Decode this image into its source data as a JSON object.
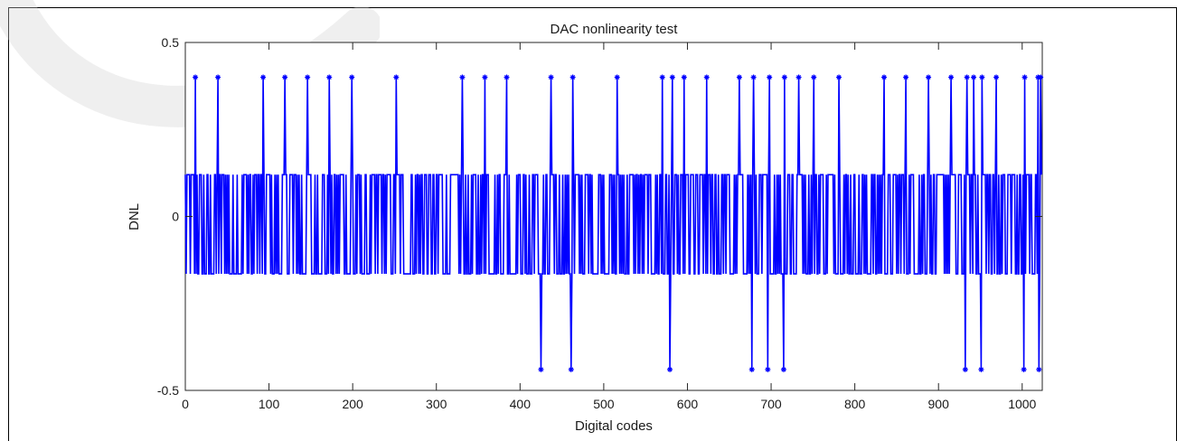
{
  "chart_data": {
    "type": "line",
    "title": "DAC nonlinearity test",
    "xlabel": "Digital codes",
    "ylabel": "DNL",
    "xlim": [
      0,
      1024
    ],
    "ylim": [
      -0.5,
      0.5
    ],
    "xticks": [
      0,
      100,
      200,
      300,
      400,
      500,
      600,
      700,
      800,
      900,
      1000
    ],
    "yticks": [
      -0.5,
      0,
      0.5
    ],
    "ytick_labels": [
      "-0.5",
      "0",
      "0.5"
    ],
    "grid": false,
    "line_color": "#0000ff",
    "levels": {
      "low": -0.165,
      "high": 0.12
    },
    "peak_codes": [
      12,
      39,
      93,
      119,
      146,
      172,
      199,
      252,
      331,
      358,
      384,
      437,
      463,
      516,
      570,
      582,
      596,
      623,
      662,
      679,
      698,
      716,
      733,
      751,
      781,
      835,
      861,
      888,
      915,
      934,
      942,
      952,
      969,
      1003,
      1019,
      1022
    ],
    "peak_value": 0.4,
    "dip_codes": [
      425,
      461,
      579,
      677,
      696,
      715,
      932,
      951,
      1002,
      1020
    ],
    "dip_value": -0.44
  }
}
